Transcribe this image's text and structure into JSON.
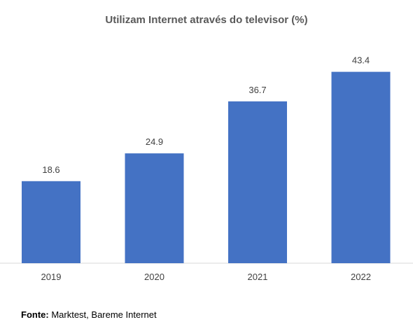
{
  "chart_data": {
    "type": "bar",
    "title": "Utilizam Internet através do televisor (%)",
    "categories": [
      "2019",
      "2020",
      "2021",
      "2022"
    ],
    "values": [
      18.6,
      24.9,
      36.7,
      43.4
    ],
    "data_labels": [
      "18.6",
      "24.9",
      "36.7",
      "43.4"
    ],
    "xlabel": "",
    "ylabel": "",
    "ylim": [
      0,
      46
    ],
    "grid": false,
    "bar_color": "#4472C4"
  },
  "source": {
    "label": "Fonte:",
    "text": " Marktest, Bareme Internet"
  }
}
